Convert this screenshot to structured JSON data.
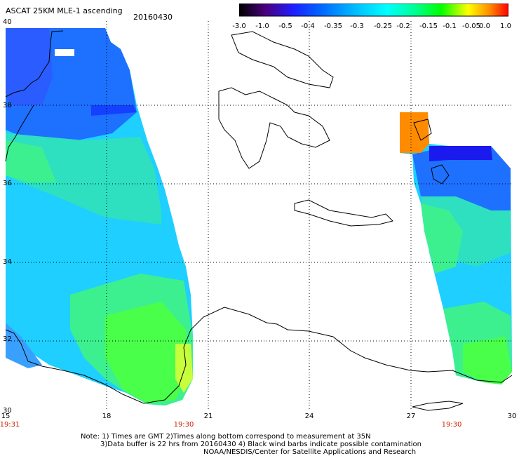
{
  "header": {
    "title": "ASCAT 25KM MLE-1 ascending",
    "date": "20160430"
  },
  "colorbar": {
    "labels": [
      "-3.0",
      "-1.0",
      "-0.5",
      "-0.4",
      "-0.35",
      "-0.3",
      "-0.25",
      "-0.2",
      "-0.15",
      "-0.1",
      "-0.05",
      "0.0",
      "1.0"
    ],
    "colors": [
      "#000000",
      "#3d0070",
      "#4b00b4",
      "#1e1eff",
      "#0064ff",
      "#00b4ff",
      "#00ffff",
      "#00ff96",
      "#00ff00",
      "#96ff00",
      "#ffff00",
      "#ff8c00",
      "#ff0000"
    ]
  },
  "axes": {
    "lat_labels": [
      "40",
      "38",
      "36",
      "34",
      "32",
      "30"
    ],
    "lon_labels": [
      "15",
      "18",
      "21",
      "24",
      "27",
      "30"
    ],
    "time_labels": [
      "19:31",
      "19:30",
      "19:30"
    ]
  },
  "notes": {
    "line1": "Note: 1) Times are GMT 2)Times along bottom correspond to measurement at 35N",
    "line2": "3)Data buffer is 22 hrs from 20160430 4) Black wind barbs indicate possible contamination",
    "line3": "NOAA/NESDIS/Center for Satellite Applications and Research"
  }
}
